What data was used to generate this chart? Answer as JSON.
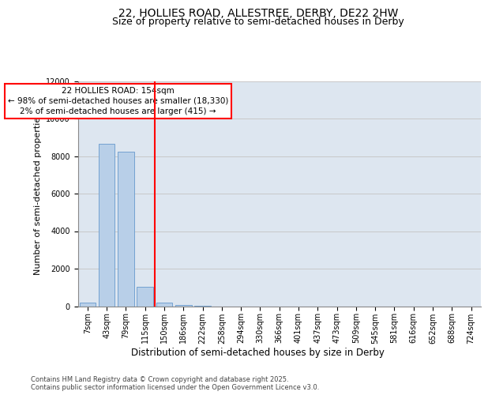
{
  "title_line1": "22, HOLLIES ROAD, ALLESTREE, DERBY, DE22 2HW",
  "title_line2": "Size of property relative to semi-detached houses in Derby",
  "xlabel": "Distribution of semi-detached houses by size in Derby",
  "ylabel": "Number of semi-detached properties",
  "categories": [
    "7sqm",
    "43sqm",
    "79sqm",
    "115sqm",
    "150sqm",
    "186sqm",
    "222sqm",
    "258sqm",
    "294sqm",
    "330sqm",
    "366sqm",
    "401sqm",
    "437sqm",
    "473sqm",
    "509sqm",
    "545sqm",
    "581sqm",
    "616sqm",
    "652sqm",
    "688sqm",
    "724sqm"
  ],
  "values": [
    170,
    8650,
    8250,
    1050,
    200,
    80,
    15,
    0,
    0,
    0,
    0,
    0,
    0,
    0,
    0,
    0,
    0,
    0,
    0,
    0,
    0
  ],
  "bar_color": "#b8cfe8",
  "bar_edge_color": "#6699cc",
  "highlight_line_color": "red",
  "highlight_line_index": 3.5,
  "annotation_text": "22 HOLLIES ROAD: 154sqm\n← 98% of semi-detached houses are smaller (18,330)\n2% of semi-detached houses are larger (415) →",
  "ylim": [
    0,
    12000
  ],
  "yticks": [
    0,
    2000,
    4000,
    6000,
    8000,
    10000,
    12000
  ],
  "grid_color": "#c8c8c8",
  "background_color": "#dde6f0",
  "footer_text": "Contains HM Land Registry data © Crown copyright and database right 2025.\nContains public sector information licensed under the Open Government Licence v3.0.",
  "title_fontsize": 10,
  "subtitle_fontsize": 9,
  "axis_label_fontsize": 8.5,
  "tick_fontsize": 7,
  "annotation_fontsize": 7.5,
  "ylabel_fontsize": 8
}
